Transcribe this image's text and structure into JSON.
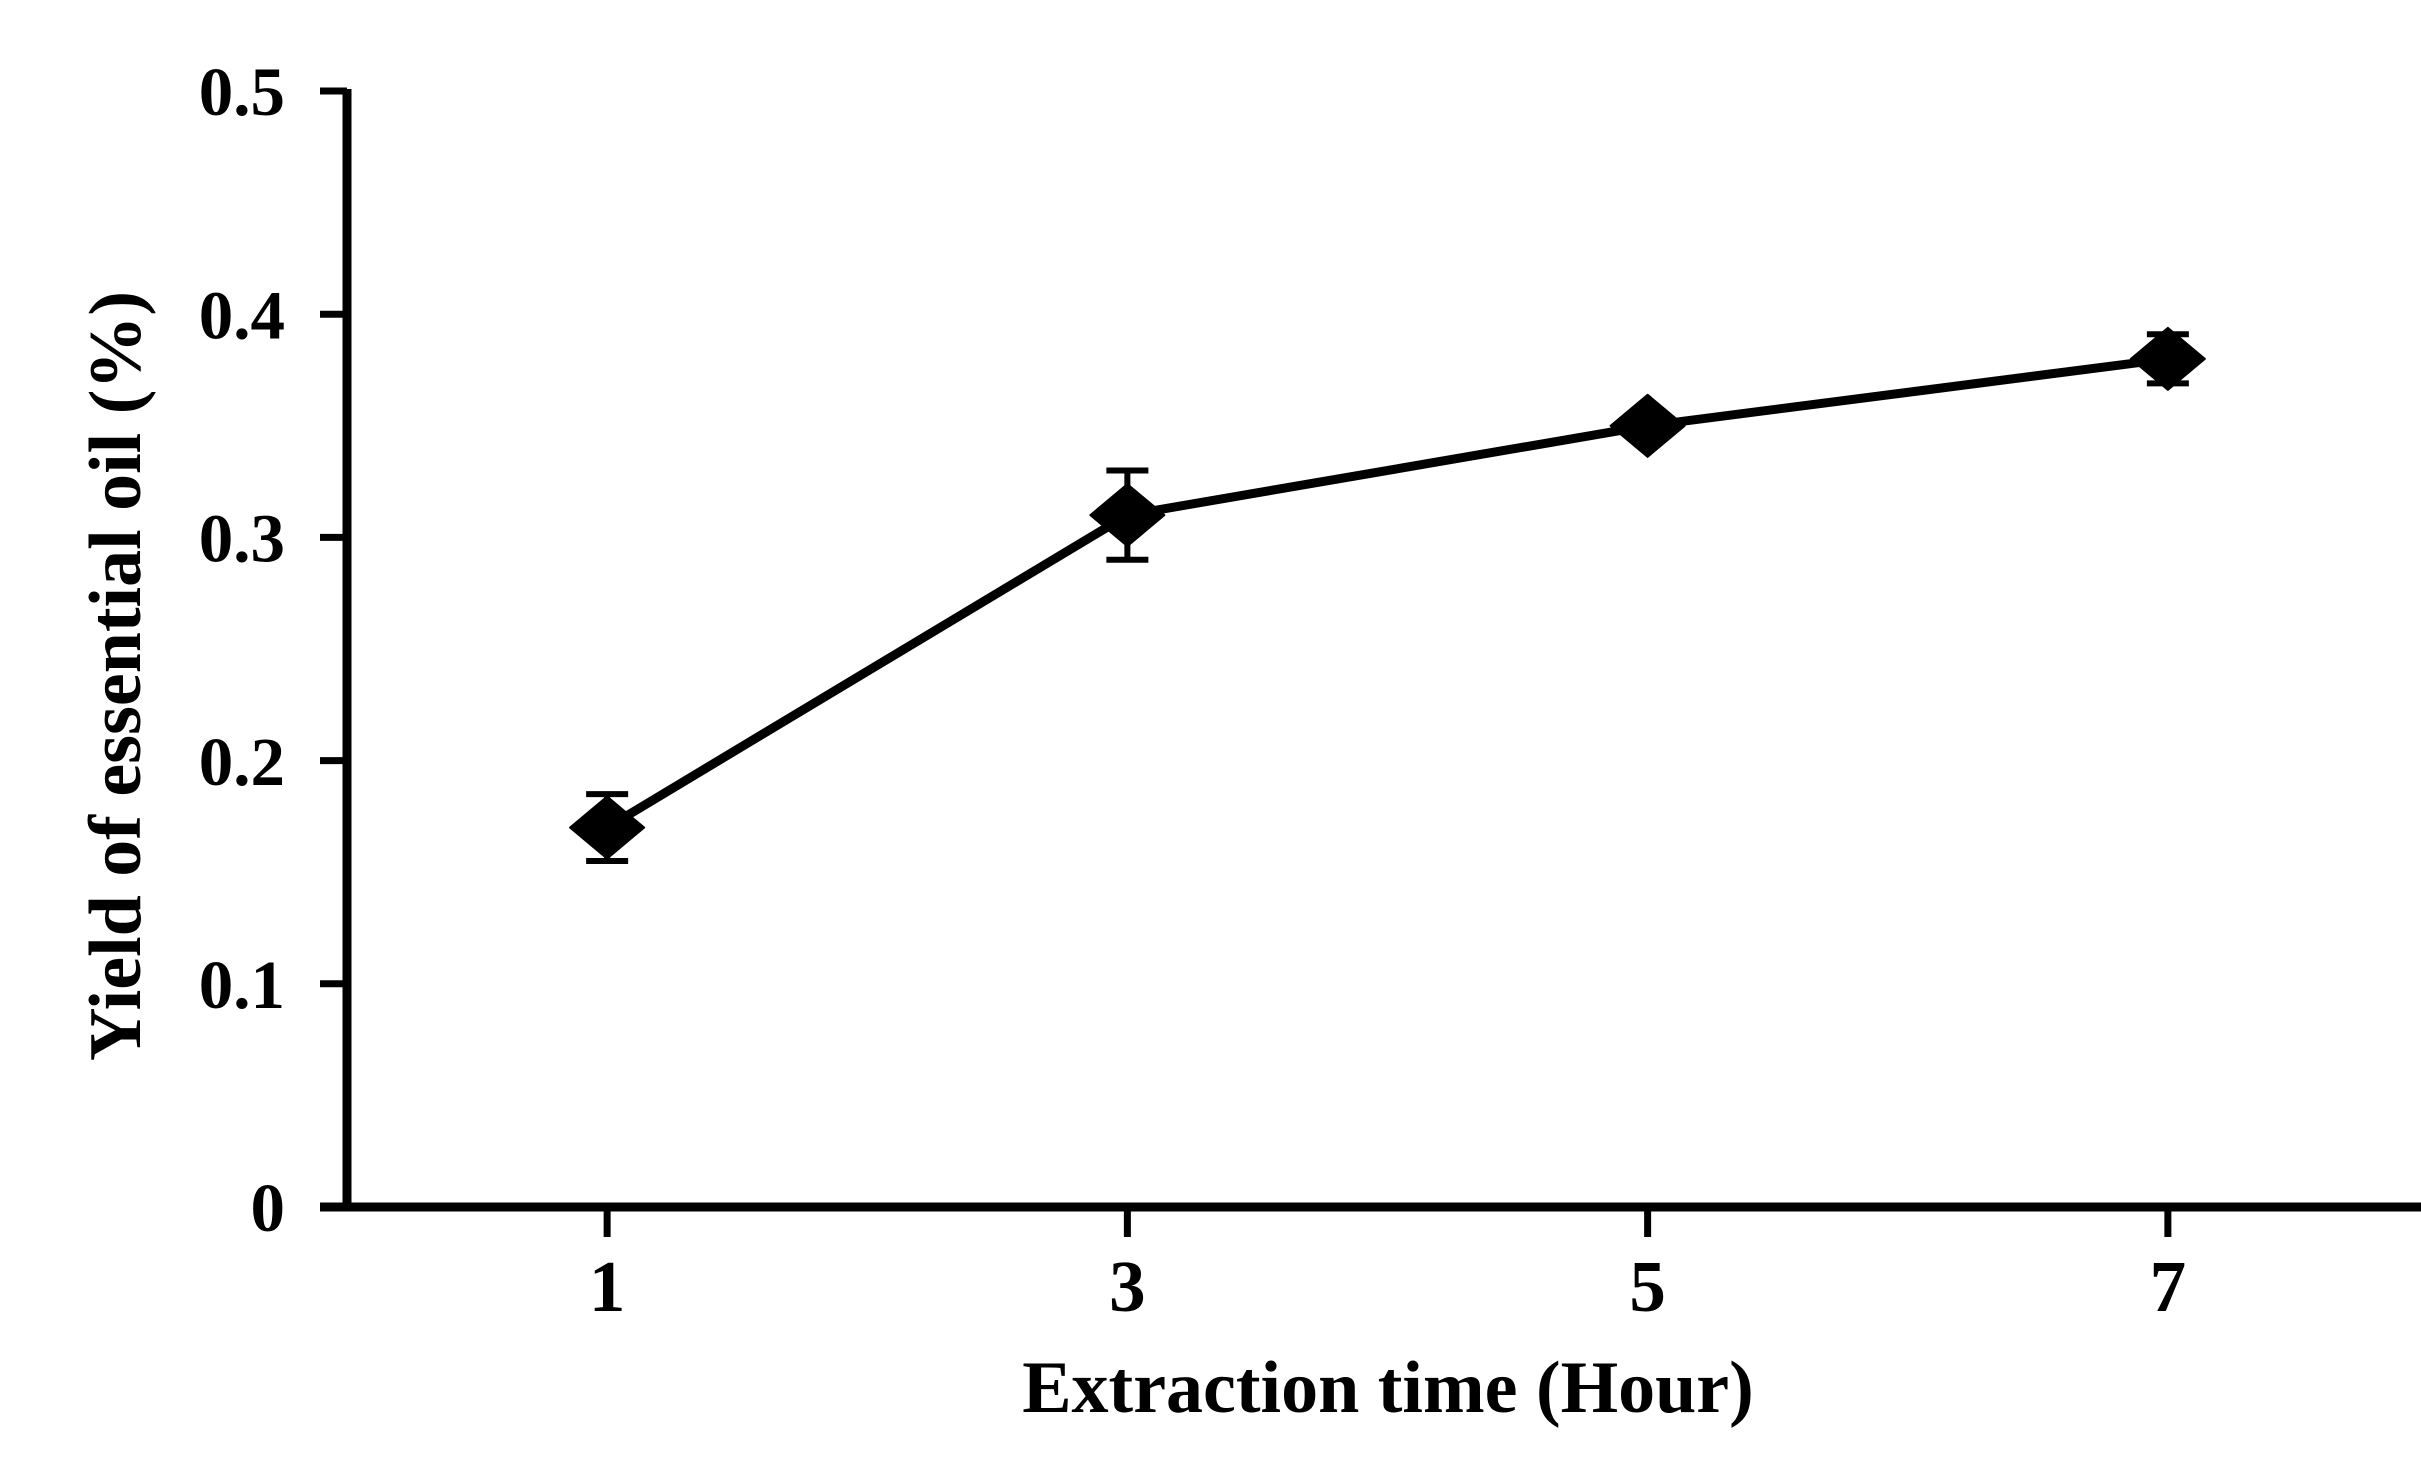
{
  "chart_data": {
    "type": "line",
    "title": "",
    "xlabel": "Extraction time (Hour)",
    "ylabel": "Yield of essential oil (%)",
    "categories": [
      "1",
      "3",
      "5",
      "7"
    ],
    "x_values": [
      1,
      3,
      5,
      7
    ],
    "series": [
      {
        "name": "Yield of essential oil",
        "values": [
          0.17,
          0.31,
          0.35,
          0.38
        ],
        "errors": [
          0.015,
          0.02,
          0.005,
          0.011
        ],
        "marker": "diamond",
        "color": "#000000"
      }
    ],
    "ylim": [
      0,
      0.5
    ],
    "y_ticks": [
      0,
      0.1,
      0.2,
      0.3,
      0.4,
      0.5
    ],
    "y_tick_labels": [
      "0",
      "0.1",
      "0.2",
      "0.3",
      "0.4",
      "0.5"
    ],
    "grid": false,
    "legend": "none",
    "background_color": "#ffffff",
    "axis_color": "#000000"
  }
}
